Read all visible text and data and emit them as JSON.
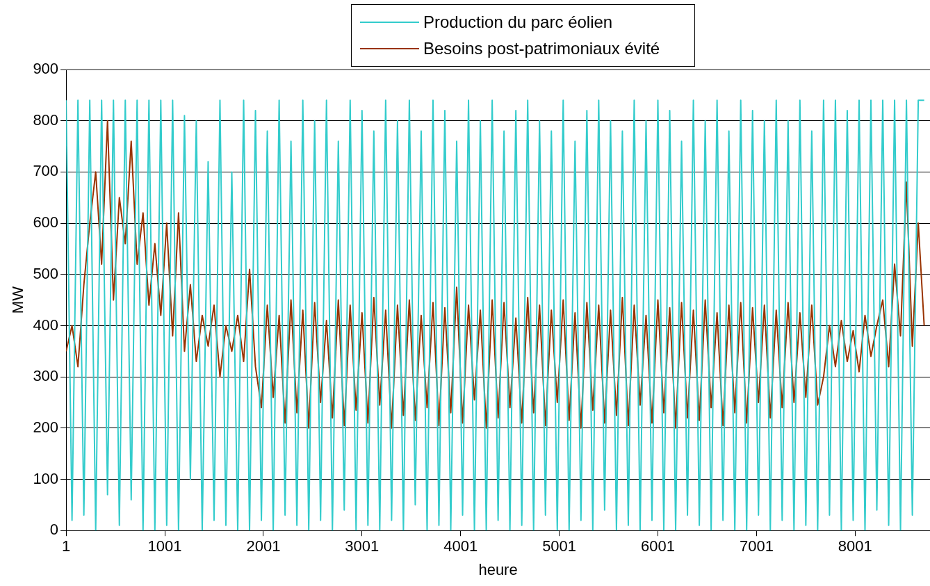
{
  "chart_data": {
    "type": "line",
    "xlabel": "heure",
    "ylabel": "MW",
    "x": [
      1,
      61,
      121,
      181,
      241,
      301,
      361,
      421,
      481,
      541,
      601,
      661,
      721,
      781,
      841,
      901,
      961,
      1021,
      1081,
      1141,
      1201,
      1261,
      1321,
      1381,
      1441,
      1501,
      1561,
      1621,
      1681,
      1741,
      1801,
      1861,
      1921,
      1981,
      2041,
      2101,
      2161,
      2221,
      2281,
      2341,
      2401,
      2461,
      2521,
      2581,
      2641,
      2701,
      2761,
      2821,
      2881,
      2941,
      3001,
      3061,
      3121,
      3181,
      3241,
      3301,
      3361,
      3421,
      3481,
      3541,
      3601,
      3661,
      3721,
      3781,
      3841,
      3901,
      3961,
      4021,
      4081,
      4141,
      4201,
      4261,
      4321,
      4381,
      4441,
      4501,
      4561,
      4621,
      4681,
      4741,
      4801,
      4861,
      4921,
      4981,
      5041,
      5101,
      5161,
      5221,
      5281,
      5341,
      5401,
      5461,
      5521,
      5581,
      5641,
      5701,
      5761,
      5821,
      5881,
      5941,
      6001,
      6061,
      6121,
      6181,
      6241,
      6301,
      6361,
      6421,
      6481,
      6541,
      6601,
      6661,
      6721,
      6781,
      6841,
      6901,
      6961,
      7021,
      7081,
      7141,
      7201,
      7261,
      7321,
      7381,
      7441,
      7501,
      7561,
      7621,
      7681,
      7741,
      7801,
      7861,
      7921,
      7981,
      8041,
      8101,
      8161,
      8221,
      8281,
      8341,
      8401,
      8461,
      8521,
      8581,
      8641,
      8701
    ],
    "series": [
      {
        "name": "Production du parc éolien",
        "color": "#33cccc",
        "values": [
          840,
          20,
          840,
          30,
          840,
          0,
          840,
          70,
          840,
          10,
          840,
          60,
          840,
          0,
          840,
          0,
          840,
          10,
          840,
          0,
          810,
          100,
          800,
          0,
          720,
          20,
          840,
          10,
          700,
          0,
          840,
          0,
          820,
          20,
          780,
          0,
          840,
          30,
          760,
          10,
          840,
          0,
          800,
          20,
          840,
          0,
          760,
          40,
          840,
          0,
          820,
          10,
          780,
          0,
          840,
          20,
          800,
          0,
          840,
          50,
          780,
          0,
          840,
          10,
          820,
          0,
          760,
          30,
          840,
          0,
          800,
          0,
          840,
          20,
          780,
          0,
          820,
          10,
          840,
          0,
          800,
          30,
          780,
          0,
          840,
          0,
          760,
          20,
          820,
          0,
          840,
          40,
          800,
          0,
          780,
          10,
          840,
          0,
          800,
          20,
          840,
          0,
          820,
          0,
          760,
          30,
          840,
          10,
          800,
          0,
          840,
          20,
          780,
          0,
          840,
          0,
          820,
          30,
          800,
          0,
          840,
          20,
          800,
          0,
          840,
          10,
          780,
          0,
          840,
          30,
          840,
          0,
          820,
          20,
          840,
          0,
          840,
          40,
          840,
          10,
          840,
          0,
          840,
          30,
          840,
          840
        ]
      },
      {
        "name": "Besoins post-patrimoniaux évité",
        "color": "#993300",
        "values": [
          350,
          400,
          320,
          480,
          600,
          700,
          520,
          800,
          450,
          650,
          560,
          760,
          520,
          620,
          440,
          560,
          420,
          600,
          380,
          620,
          350,
          480,
          330,
          420,
          360,
          440,
          300,
          400,
          350,
          420,
          330,
          510,
          320,
          240,
          440,
          260,
          420,
          210,
          450,
          230,
          430,
          200,
          445,
          250,
          410,
          220,
          450,
          205,
          440,
          235,
          425,
          210,
          455,
          245,
          430,
          200,
          440,
          225,
          450,
          215,
          420,
          240,
          445,
          205,
          435,
          230,
          475,
          210,
          440,
          255,
          430,
          200,
          450,
          220,
          445,
          240,
          415,
          210,
          455,
          230,
          440,
          205,
          430,
          250,
          450,
          215,
          425,
          200,
          445,
          235,
          440,
          210,
          430,
          225,
          455,
          205,
          440,
          245,
          420,
          210,
          450,
          230,
          435,
          200,
          445,
          220,
          430,
          215,
          450,
          240,
          425,
          205,
          440,
          230,
          445,
          210,
          435,
          250,
          440,
          220,
          430,
          240,
          445,
          250,
          425,
          260,
          440,
          245,
          300,
          400,
          320,
          410,
          330,
          390,
          310,
          420,
          340,
          400,
          450,
          320,
          520,
          380,
          680,
          360,
          600,
          400
        ]
      }
    ],
    "xlim": [
      1,
      8760
    ],
    "xticks": [
      1,
      1001,
      2001,
      3001,
      4001,
      5001,
      6001,
      7001,
      8001
    ],
    "ylim": [
      0,
      900
    ],
    "yticks": [
      0,
      100,
      200,
      300,
      400,
      500,
      600,
      700,
      800,
      900
    ],
    "grid": "y",
    "legend": "top",
    "marker": "none",
    "line_style": "solid"
  }
}
